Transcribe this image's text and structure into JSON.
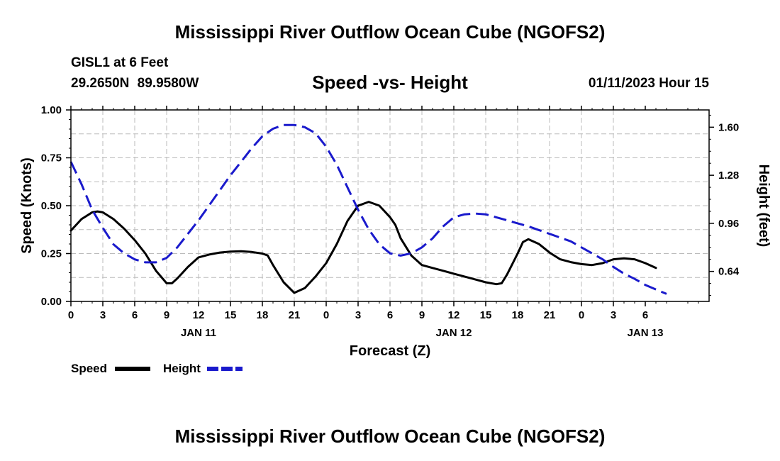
{
  "header": {
    "title": "Mississippi River Outflow Ocean Cube (NGOFS2)",
    "station": "GISL1 at 6 Feet",
    "coords": "29.2650N  89.9580W",
    "subtitle": "Speed -vs- Height",
    "datetime": "01/11/2023 Hour 15"
  },
  "footer": {
    "title": "Mississippi River Outflow Ocean Cube (NGOFS2)"
  },
  "colors": {
    "speed": "#000000",
    "height": "#1a1acc",
    "grid": "#bbbbbb"
  },
  "chart_data": {
    "type": "line",
    "title": "Speed -vs- Height",
    "xlabel": "Forecast (Z)",
    "ylabel": "Speed (Knots)",
    "y2label": "Height (feet)",
    "x_range_hours": [
      0,
      60
    ],
    "ylim": [
      0,
      1
    ],
    "y2lim": [
      0.44,
      1.715
    ],
    "y_ticks": [
      "0.00",
      "0.25",
      "0.50",
      "0.75",
      "1.00"
    ],
    "y2_ticks": [
      "0.64",
      "0.96",
      "1.28",
      "1.60"
    ],
    "x_tick_labels": [
      "0",
      "3",
      "6",
      "9",
      "12",
      "15",
      "18",
      "21",
      "0",
      "3",
      "6",
      "9",
      "12",
      "15",
      "18",
      "21",
      "0",
      "3",
      "6"
    ],
    "day_labels": [
      {
        "label": "JAN 11",
        "hour": 12
      },
      {
        "label": "JAN 12",
        "hour": 36
      },
      {
        "label": "JAN 13",
        "hour": 54
      }
    ],
    "series": [
      {
        "name": "Speed",
        "axis": "left",
        "style": "solid",
        "points": [
          [
            0,
            0.37
          ],
          [
            1,
            0.43
          ],
          [
            2,
            0.465
          ],
          [
            2.5,
            0.47
          ],
          [
            3,
            0.465
          ],
          [
            4,
            0.43
          ],
          [
            5,
            0.38
          ],
          [
            6,
            0.32
          ],
          [
            7,
            0.25
          ],
          [
            8,
            0.16
          ],
          [
            9,
            0.095
          ],
          [
            9.5,
            0.095
          ],
          [
            10,
            0.12
          ],
          [
            11,
            0.18
          ],
          [
            12,
            0.23
          ],
          [
            13,
            0.245
          ],
          [
            14,
            0.255
          ],
          [
            15,
            0.26
          ],
          [
            16,
            0.262
          ],
          [
            17,
            0.258
          ],
          [
            18,
            0.25
          ],
          [
            18.5,
            0.24
          ],
          [
            19,
            0.19
          ],
          [
            20,
            0.1
          ],
          [
            21,
            0.045
          ],
          [
            22,
            0.07
          ],
          [
            23,
            0.13
          ],
          [
            24,
            0.2
          ],
          [
            25,
            0.3
          ],
          [
            26,
            0.42
          ],
          [
            27,
            0.5
          ],
          [
            28,
            0.52
          ],
          [
            29,
            0.5
          ],
          [
            30,
            0.44
          ],
          [
            30.5,
            0.4
          ],
          [
            31,
            0.33
          ],
          [
            32,
            0.24
          ],
          [
            33,
            0.19
          ],
          [
            34,
            0.175
          ],
          [
            35,
            0.16
          ],
          [
            36,
            0.145
          ],
          [
            37,
            0.13
          ],
          [
            38,
            0.115
          ],
          [
            39,
            0.1
          ],
          [
            40,
            0.09
          ],
          [
            40.5,
            0.095
          ],
          [
            41,
            0.14
          ],
          [
            42,
            0.25
          ],
          [
            42.5,
            0.31
          ],
          [
            43,
            0.325
          ],
          [
            44,
            0.3
          ],
          [
            45,
            0.255
          ],
          [
            46,
            0.22
          ],
          [
            47,
            0.205
          ],
          [
            48,
            0.195
          ],
          [
            49,
            0.19
          ],
          [
            50,
            0.2
          ],
          [
            51,
            0.22
          ],
          [
            52,
            0.225
          ],
          [
            53,
            0.22
          ],
          [
            54,
            0.2
          ],
          [
            55,
            0.175
          ]
        ]
      },
      {
        "name": "Height",
        "axis": "right",
        "style": "dashed",
        "points": [
          [
            0,
            1.37
          ],
          [
            1,
            1.22
          ],
          [
            2,
            1.05
          ],
          [
            3,
            0.93
          ],
          [
            4,
            0.82
          ],
          [
            5,
            0.76
          ],
          [
            6,
            0.72
          ],
          [
            7,
            0.7
          ],
          [
            8,
            0.7
          ],
          [
            9,
            0.73
          ],
          [
            10,
            0.8
          ],
          [
            11,
            0.89
          ],
          [
            12,
            0.98
          ],
          [
            13,
            1.08
          ],
          [
            14,
            1.18
          ],
          [
            15,
            1.28
          ],
          [
            16,
            1.37
          ],
          [
            17,
            1.46
          ],
          [
            18,
            1.54
          ],
          [
            19,
            1.59
          ],
          [
            20,
            1.615
          ],
          [
            21,
            1.615
          ],
          [
            22,
            1.6
          ],
          [
            23,
            1.56
          ],
          [
            24,
            1.47
          ],
          [
            25,
            1.35
          ],
          [
            26,
            1.2
          ],
          [
            27,
            1.05
          ],
          [
            28,
            0.92
          ],
          [
            29,
            0.82
          ],
          [
            30,
            0.76
          ],
          [
            31,
            0.745
          ],
          [
            32,
            0.76
          ],
          [
            33,
            0.8
          ],
          [
            34,
            0.86
          ],
          [
            35,
            0.94
          ],
          [
            36,
            1.0
          ],
          [
            37,
            1.02
          ],
          [
            38,
            1.025
          ],
          [
            39,
            1.02
          ],
          [
            40,
            1.0
          ],
          [
            41,
            0.98
          ],
          [
            42,
            0.96
          ],
          [
            43,
            0.94
          ],
          [
            44,
            0.915
          ],
          [
            45,
            0.89
          ],
          [
            46,
            0.865
          ],
          [
            47,
            0.84
          ],
          [
            48,
            0.8
          ],
          [
            49,
            0.76
          ],
          [
            50,
            0.72
          ],
          [
            51,
            0.67
          ],
          [
            52,
            0.625
          ],
          [
            53,
            0.59
          ],
          [
            54,
            0.55
          ],
          [
            55,
            0.52
          ],
          [
            56,
            0.49
          ]
        ]
      }
    ],
    "legend": {
      "placement": "bottom-left",
      "entries": [
        "Speed",
        "Height"
      ]
    }
  }
}
